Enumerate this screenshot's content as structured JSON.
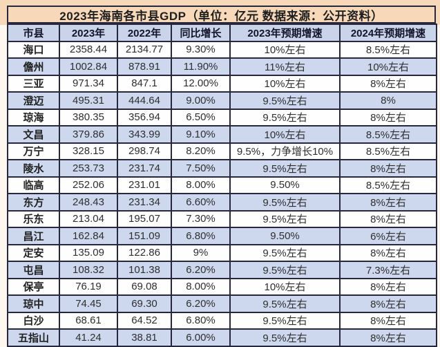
{
  "chart_data": {
    "type": "table",
    "title": "2023年海南各市县GDP（单位：亿元  数据来源：公开资料）",
    "columns": [
      "市县",
      "2023年",
      "2022年",
      "同比增长",
      "2023年预期增速",
      "2024年预期增速"
    ],
    "rows": [
      [
        "海口",
        "2358.44",
        "2134.77",
        "9.30%",
        "10%左右",
        "8.5%左右"
      ],
      [
        "儋州",
        "1002.84",
        "878.91",
        "11.90%",
        "11%左右",
        "10%左右"
      ],
      [
        "三亚",
        "971.34",
        "847.1",
        "12.00%",
        "10%左右",
        "8%左右"
      ],
      [
        "澄迈",
        "495.31",
        "444.64",
        "9.00%",
        "9.5%左右",
        "8%"
      ],
      [
        "琼海",
        "380.35",
        "356.94",
        "6.50%",
        "9.5%左右",
        "8%左右"
      ],
      [
        "文昌",
        "379.86",
        "343.99",
        "9.10%",
        "10%左右",
        "8.5%左右"
      ],
      [
        "万宁",
        "328.15",
        "298.74",
        "8.20%",
        "9.5%，力争增长10%",
        "8.5%左右"
      ],
      [
        "陵水",
        "253.73",
        "231.74",
        "7.50%",
        "9.5%左右",
        "8%左右"
      ],
      [
        "临高",
        "252.06",
        "231.01",
        "8.00%",
        "9.50%",
        "8.5%左右"
      ],
      [
        "东方",
        "248.43",
        "231.34",
        "6.60%",
        "9.5%左右",
        "8%左右"
      ],
      [
        "乐东",
        "213.04",
        "195.07",
        "7.30%",
        "9.5%左右",
        "8%左右"
      ],
      [
        "昌江",
        "162.84",
        "151.09",
        "6.80%",
        "9.50%",
        "6%左右"
      ],
      [
        "定安",
        "135.09",
        "122.86",
        "9%",
        "9.5%左右",
        "8%左右"
      ],
      [
        "屯昌",
        "108.32",
        "101.38",
        "6.20%",
        "9.5%左右",
        "7.3%左右"
      ],
      [
        "保亭",
        "76.19",
        "69.08",
        "8.00%",
        "10%左右",
        "8%左右"
      ],
      [
        "琼中",
        "74.45",
        "69.30",
        "6.20%",
        "9.5%左右",
        "8%左右"
      ],
      [
        "白沙",
        "68.61",
        "64.52",
        "6.80%",
        "9.5%左右",
        "8%左右"
      ],
      [
        "五指山",
        "41.24",
        "38.81",
        "6.00%",
        "9.5%左右",
        "8%左右"
      ]
    ],
    "layout": {
      "striped_rows": true,
      "stripe_start": "white",
      "grid": "on"
    }
  },
  "colors": {
    "title_banner_bg": "#f7d9ba",
    "header_bg": "#c9d4ea",
    "row_stripe_bg": "#cdd8ef",
    "row_plain_bg": "#fefefe",
    "grid_border": "#26263c",
    "text": "#2e2e2e"
  }
}
